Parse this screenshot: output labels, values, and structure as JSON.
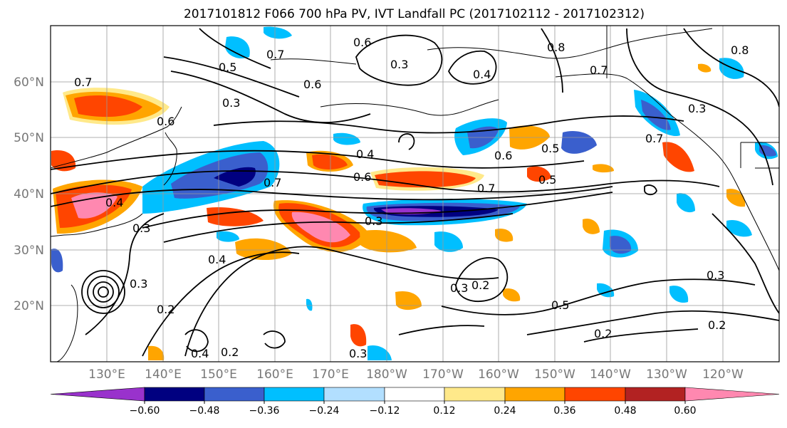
{
  "title": "2017101812 F066 700 hPa PV, IVT Landfall PC (2017102112 - 2017102312)",
  "latitude_labels": [
    "60°N",
    "50°N",
    "40°N",
    "30°N",
    "20°N"
  ],
  "longitude_labels": [
    "130°E",
    "140°E",
    "150°E",
    "160°E",
    "170°E",
    "180°W",
    "170°W",
    "160°W",
    "150°W",
    "140°W",
    "130°W",
    "120°W"
  ],
  "contour_labels": [
    "0.7",
    "0.6",
    "0.7",
    "0.5",
    "0.3",
    "0.6",
    "0.3",
    "0.4",
    "0.8",
    "0.7",
    "0.8",
    "0.3",
    "0.6",
    "0.4",
    "0.6",
    "0.7",
    "0.5",
    "0.4",
    "0.3",
    "0.7",
    "0.5",
    "0.6",
    "0.7",
    "0.3",
    "0.4",
    "0.2",
    "0.5",
    "0.2",
    "0.3",
    "0.2",
    "0.3",
    "0.2",
    "0.4",
    "0.3",
    "0.2",
    "0.3"
  ],
  "colorbar": {
    "tick_labels": [
      "−0.60",
      "−0.48",
      "−0.36",
      "−0.24",
      "−0.12",
      "0.12",
      "0.24",
      "0.36",
      "0.48",
      "0.60"
    ],
    "colors": [
      "#9932cc",
      "#000080",
      "#3a5fcd",
      "#00bfff",
      "#b2dfff",
      "#ffffff",
      "#ffe98a",
      "#ffa500",
      "#ff4500",
      "#b22222",
      "#ff88b0"
    ]
  },
  "map_style": {
    "positive_colors": [
      "#ffe98a",
      "#ffa500",
      "#ff4500",
      "#b22222",
      "#ff88b0"
    ],
    "negative_colors": [
      "#b2dfff",
      "#00bfff",
      "#3a5fcd",
      "#000080",
      "#9932cc"
    ]
  }
}
